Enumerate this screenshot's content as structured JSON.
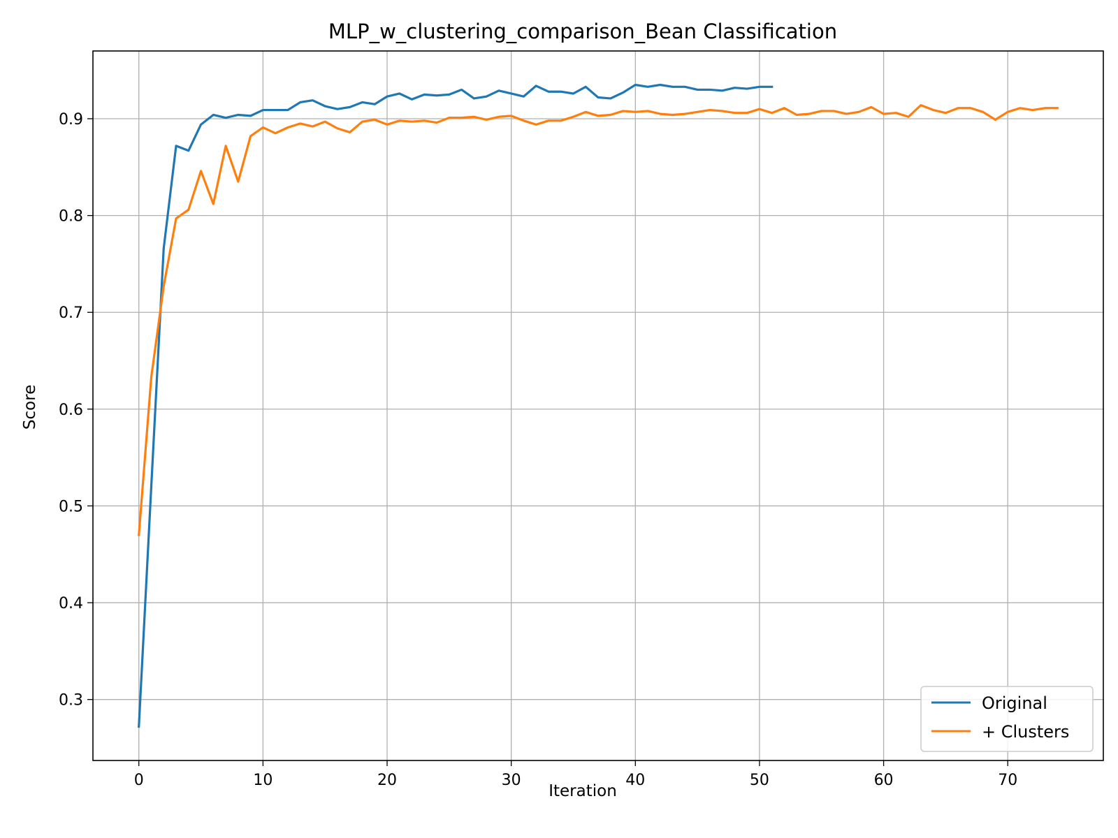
{
  "chart_data": {
    "type": "line",
    "title": "MLP_w_clustering_comparison_Bean Classification",
    "xlabel": "Iteration",
    "ylabel": "Score",
    "xlim": [
      -3.7,
      77.7
    ],
    "ylim": [
      0.237,
      0.97
    ],
    "xticks": [
      0,
      10,
      20,
      30,
      40,
      50,
      60,
      70
    ],
    "yticks": [
      0.3,
      0.4,
      0.5,
      0.6,
      0.7,
      0.8,
      0.9
    ],
    "grid": true,
    "legend_position": "lower right",
    "series": [
      {
        "name": "Original",
        "color": "#1f77b4",
        "values": [
          0.272,
          0.52,
          0.766,
          0.872,
          0.867,
          0.894,
          0.904,
          0.901,
          0.904,
          0.903,
          0.909,
          0.909,
          0.909,
          0.917,
          0.919,
          0.913,
          0.91,
          0.912,
          0.917,
          0.915,
          0.923,
          0.926,
          0.92,
          0.925,
          0.924,
          0.925,
          0.93,
          0.921,
          0.923,
          0.929,
          0.926,
          0.923,
          0.934,
          0.928,
          0.928,
          0.926,
          0.933,
          0.922,
          0.921,
          0.927,
          0.935,
          0.933,
          0.935,
          0.933,
          0.933,
          0.93,
          0.93,
          0.929,
          0.932,
          0.931,
          0.933,
          0.933
        ]
      },
      {
        "name": "+ Clusters",
        "color": "#ff7f0e",
        "values": [
          0.47,
          0.633,
          0.727,
          0.797,
          0.806,
          0.846,
          0.812,
          0.872,
          0.835,
          0.882,
          0.891,
          0.885,
          0.891,
          0.895,
          0.892,
          0.897,
          0.89,
          0.886,
          0.897,
          0.899,
          0.894,
          0.898,
          0.897,
          0.898,
          0.896,
          0.901,
          0.901,
          0.902,
          0.899,
          0.902,
          0.903,
          0.898,
          0.894,
          0.898,
          0.898,
          0.902,
          0.907,
          0.903,
          0.904,
          0.908,
          0.907,
          0.908,
          0.905,
          0.904,
          0.905,
          0.907,
          0.909,
          0.908,
          0.906,
          0.906,
          0.91,
          0.906,
          0.911,
          0.904,
          0.905,
          0.908,
          0.908,
          0.905,
          0.907,
          0.912,
          0.905,
          0.906,
          0.902,
          0.914,
          0.909,
          0.906,
          0.911,
          0.911,
          0.907,
          0.899,
          0.907,
          0.911,
          0.909,
          0.911,
          0.911
        ]
      }
    ]
  }
}
